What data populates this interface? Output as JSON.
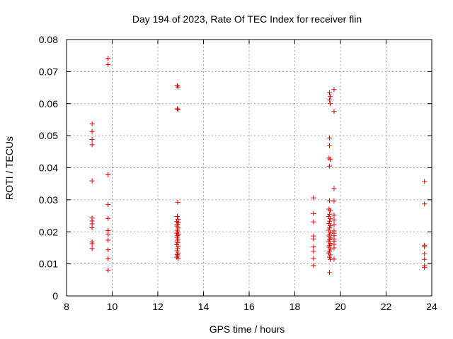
{
  "chart_data": {
    "type": "scatter",
    "title": "Day 194 of 2023, Rate Of TEC Index for receiver flin",
    "xlabel": "GPS time / hours",
    "ylabel": "ROTI / TECUs",
    "xlim": [
      8,
      24
    ],
    "ylim": [
      0,
      0.08
    ],
    "xticks": [
      8,
      10,
      12,
      14,
      16,
      18,
      20,
      22,
      24
    ],
    "yticks": [
      0,
      0.01,
      0.02,
      0.03,
      0.04,
      0.05,
      0.06,
      0.07,
      0.08
    ],
    "xtick_labels": [
      "8",
      "10",
      "12",
      "14",
      "16",
      "18",
      "20",
      "22",
      "24"
    ],
    "ytick_labels": [
      "0",
      "0.01",
      "0.02",
      "0.03",
      "0.04",
      "0.05",
      "0.06",
      "0.07",
      "0.08"
    ],
    "grid": true,
    "marker": "+",
    "marker_color": "#e00000",
    "grid_color": "#a0a0a0",
    "points": [
      [
        9.12,
        0.0537
      ],
      [
        9.12,
        0.0513
      ],
      [
        9.12,
        0.0488
      ],
      [
        9.12,
        0.0472
      ],
      [
        9.12,
        0.0359
      ],
      [
        9.12,
        0.0243
      ],
      [
        9.12,
        0.0234
      ],
      [
        9.12,
        0.0225
      ],
      [
        9.12,
        0.0213
      ],
      [
        9.12,
        0.0168
      ],
      [
        9.12,
        0.0163
      ],
      [
        9.12,
        0.0148
      ],
      [
        9.82,
        0.0741
      ],
      [
        9.82,
        0.0722
      ],
      [
        9.82,
        0.0378
      ],
      [
        9.82,
        0.0285
      ],
      [
        9.82,
        0.0242
      ],
      [
        9.82,
        0.0204
      ],
      [
        9.82,
        0.0193
      ],
      [
        9.82,
        0.0174
      ],
      [
        9.82,
        0.0144
      ],
      [
        9.82,
        0.0116
      ],
      [
        9.82,
        0.008
      ],
      [
        12.85,
        0.0656
      ],
      [
        12.88,
        0.0652
      ],
      [
        12.85,
        0.0584
      ],
      [
        12.88,
        0.0581
      ],
      [
        12.87,
        0.0292
      ],
      [
        12.85,
        0.0248
      ],
      [
        12.88,
        0.0239
      ],
      [
        12.83,
        0.0232
      ],
      [
        12.9,
        0.0229
      ],
      [
        12.86,
        0.0224
      ],
      [
        12.84,
        0.0218
      ],
      [
        12.89,
        0.0212
      ],
      [
        12.85,
        0.0205
      ],
      [
        12.87,
        0.02
      ],
      [
        12.83,
        0.0196
      ],
      [
        12.9,
        0.0193
      ],
      [
        12.86,
        0.0188
      ],
      [
        12.84,
        0.0183
      ],
      [
        12.88,
        0.0177
      ],
      [
        12.85,
        0.0172
      ],
      [
        12.87,
        0.0166
      ],
      [
        12.83,
        0.016
      ],
      [
        12.89,
        0.0154
      ],
      [
        12.86,
        0.0148
      ],
      [
        12.84,
        0.0141
      ],
      [
        12.88,
        0.0134
      ],
      [
        12.85,
        0.0129
      ],
      [
        12.87,
        0.0125
      ],
      [
        12.83,
        0.0121
      ],
      [
        12.89,
        0.0116
      ],
      [
        18.82,
        0.0306
      ],
      [
        18.82,
        0.0257
      ],
      [
        18.82,
        0.0231
      ],
      [
        18.82,
        0.0187
      ],
      [
        18.82,
        0.0178
      ],
      [
        18.82,
        0.0153
      ],
      [
        18.82,
        0.0139
      ],
      [
        18.82,
        0.0117
      ],
      [
        18.82,
        0.0095
      ],
      [
        19.52,
        0.0634
      ],
      [
        19.55,
        0.0622
      ],
      [
        19.52,
        0.0611
      ],
      [
        19.55,
        0.06
      ],
      [
        19.52,
        0.0493
      ],
      [
        19.52,
        0.0469
      ],
      [
        19.5,
        0.043
      ],
      [
        19.55,
        0.0426
      ],
      [
        19.52,
        0.0405
      ],
      [
        19.52,
        0.0297
      ],
      [
        19.5,
        0.0271
      ],
      [
        19.55,
        0.0266
      ],
      [
        19.52,
        0.0255
      ],
      [
        19.48,
        0.0248
      ],
      [
        19.56,
        0.0241
      ],
      [
        19.52,
        0.0233
      ],
      [
        19.5,
        0.0226
      ],
      [
        19.55,
        0.0219
      ],
      [
        19.52,
        0.0212
      ],
      [
        19.48,
        0.0205
      ],
      [
        19.56,
        0.0199
      ],
      [
        19.52,
        0.0193
      ],
      [
        19.5,
        0.0187
      ],
      [
        19.55,
        0.0181
      ],
      [
        19.52,
        0.0175
      ],
      [
        19.48,
        0.0169
      ],
      [
        19.56,
        0.0164
      ],
      [
        19.52,
        0.0158
      ],
      [
        19.5,
        0.0152
      ],
      [
        19.55,
        0.0146
      ],
      [
        19.52,
        0.014
      ],
      [
        19.48,
        0.0134
      ],
      [
        19.56,
        0.0128
      ],
      [
        19.52,
        0.0121
      ],
      [
        19.55,
        0.0114
      ],
      [
        19.52,
        0.0073
      ],
      [
        19.72,
        0.0644
      ],
      [
        19.72,
        0.0576
      ],
      [
        19.72,
        0.0335
      ],
      [
        19.72,
        0.0296
      ],
      [
        19.72,
        0.0252
      ],
      [
        19.72,
        0.0237
      ],
      [
        19.72,
        0.0222
      ],
      [
        19.72,
        0.0203
      ],
      [
        19.72,
        0.0196
      ],
      [
        19.72,
        0.0188
      ],
      [
        19.72,
        0.0178
      ],
      [
        19.72,
        0.0171
      ],
      [
        19.72,
        0.0161
      ],
      [
        19.72,
        0.015
      ],
      [
        19.72,
        0.0115
      ],
      [
        23.68,
        0.0357
      ],
      [
        23.68,
        0.0287
      ],
      [
        23.68,
        0.0158
      ],
      [
        23.68,
        0.0153
      ],
      [
        23.68,
        0.0131
      ],
      [
        23.68,
        0.0114
      ],
      [
        23.68,
        0.0094
      ],
      [
        23.68,
        0.0089
      ]
    ]
  }
}
